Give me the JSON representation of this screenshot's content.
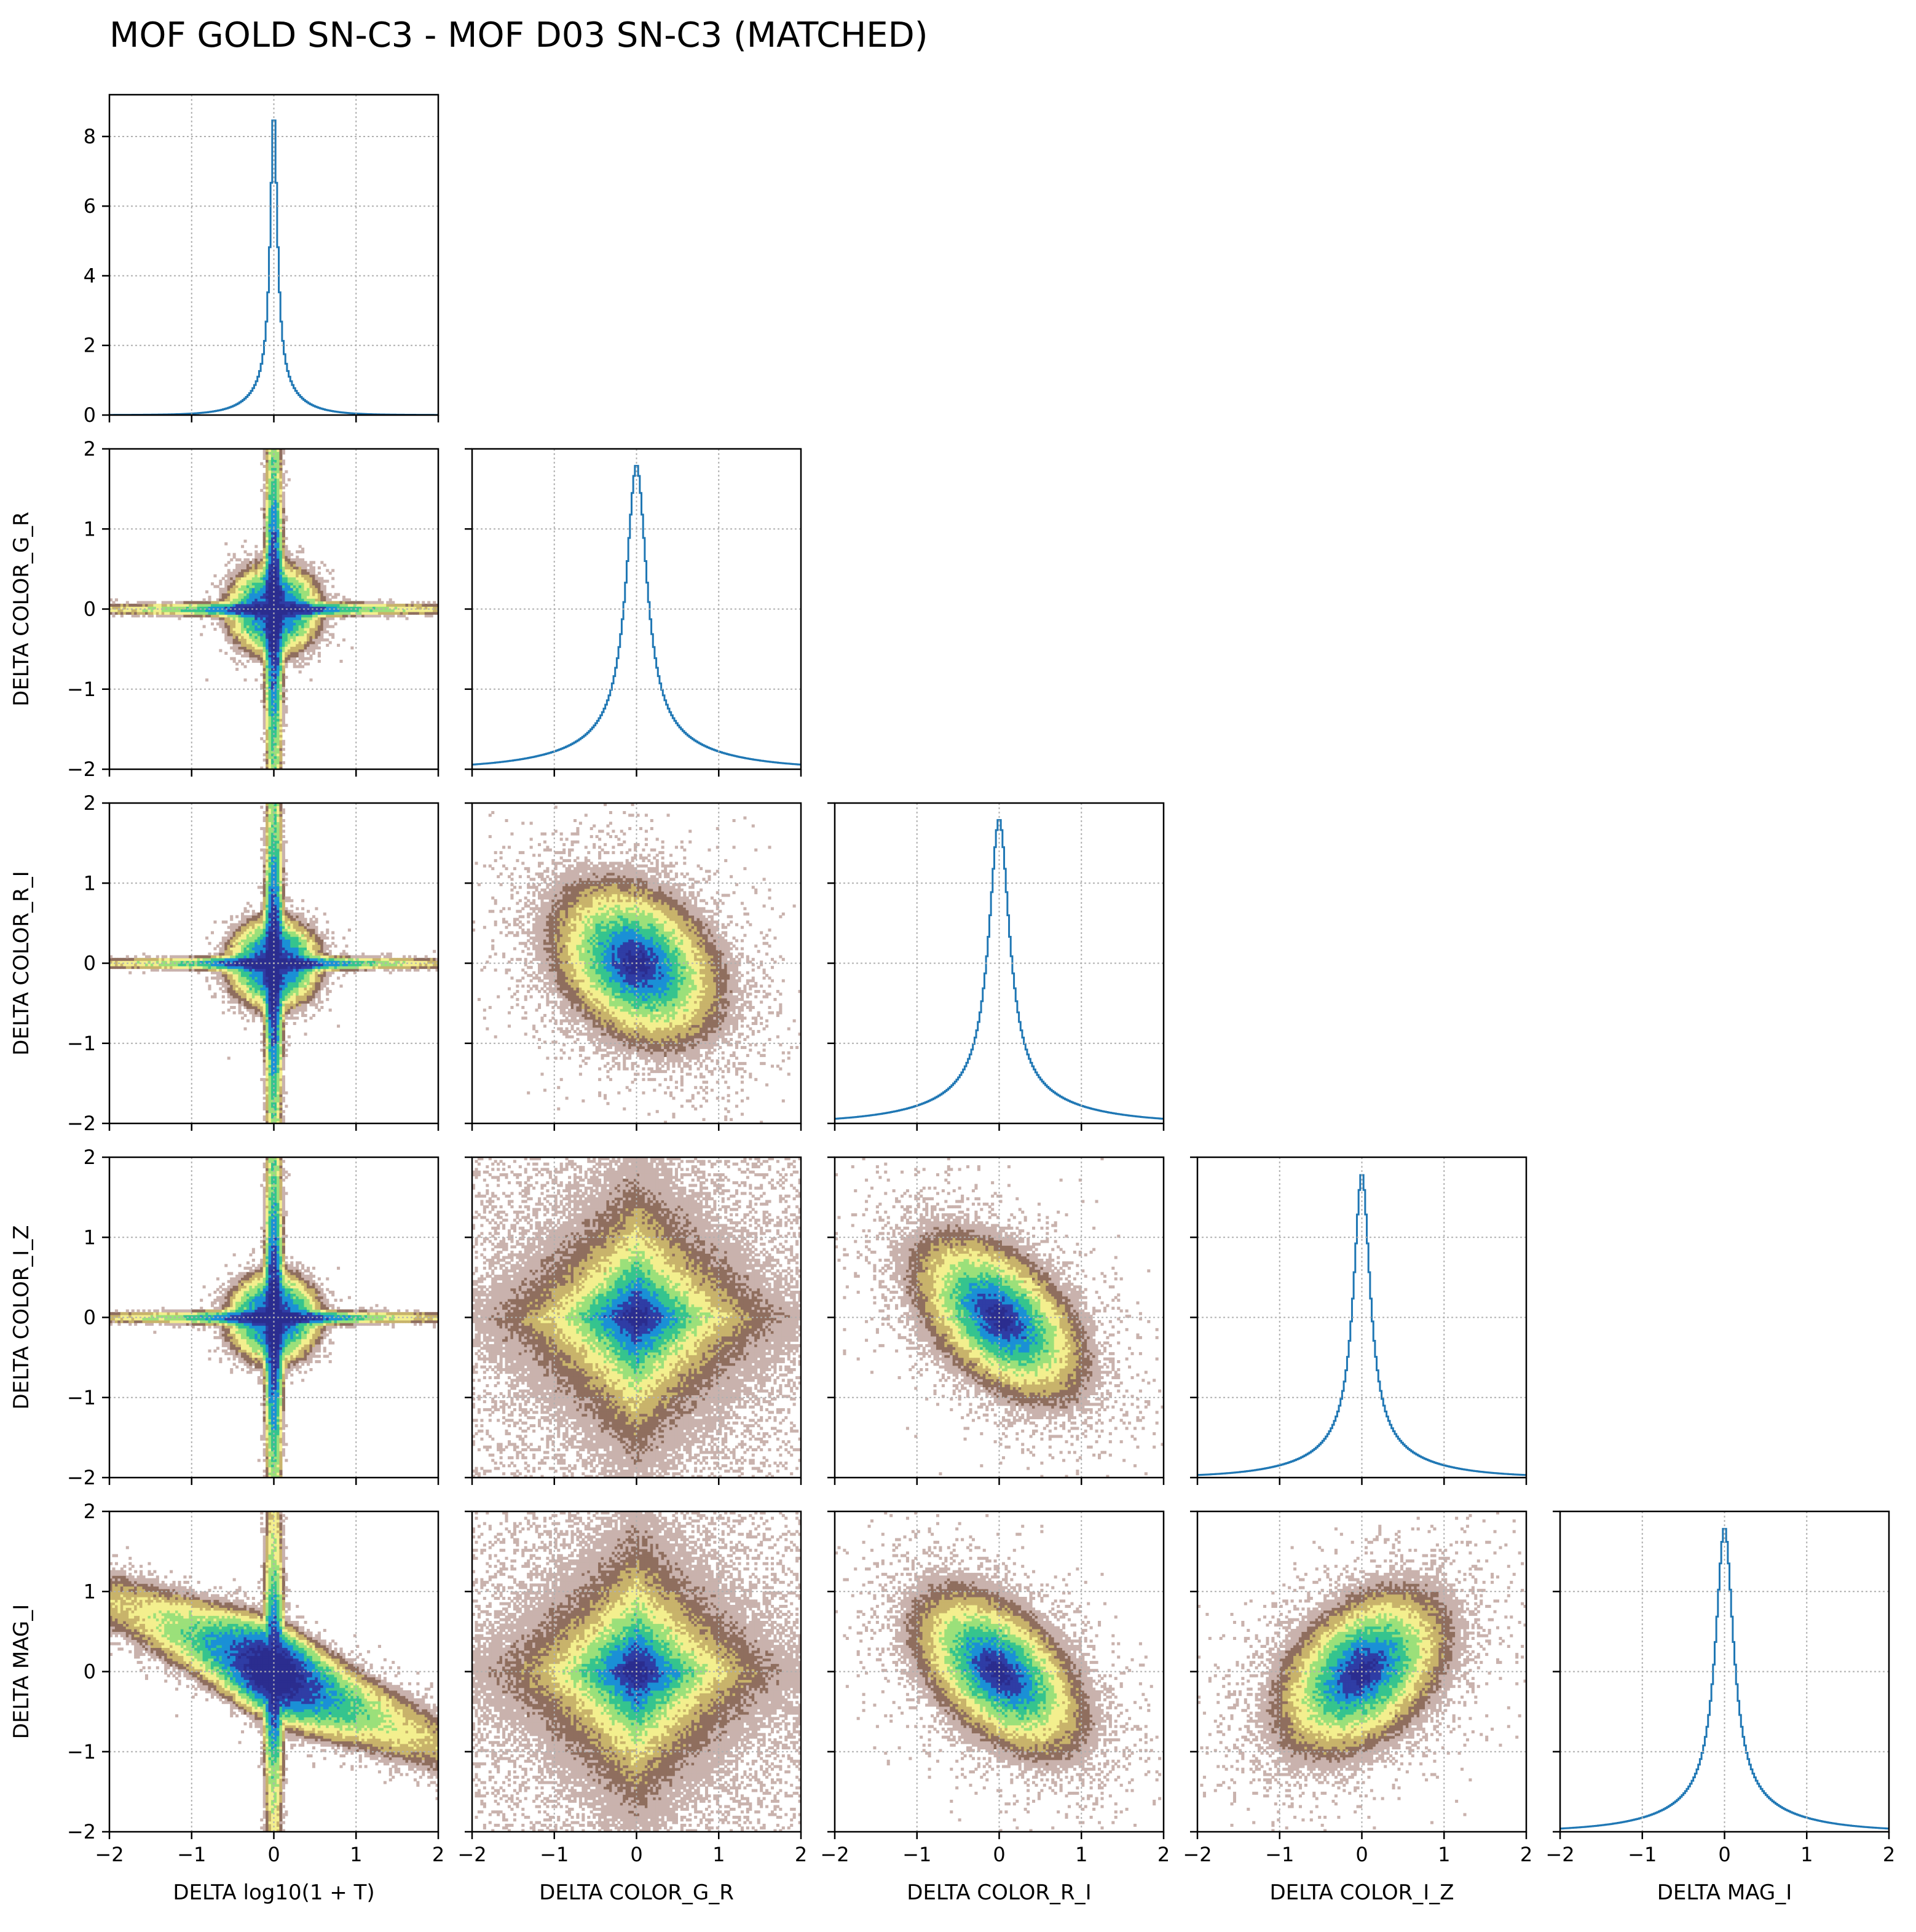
{
  "title": "MOF GOLD SN-C3 - MOF D03 SN-C3 (MATCHED)",
  "colors": {
    "hist_line": "#1f77b4",
    "grid": "#b0b0b0",
    "density_cmap": [
      "#c9b2ad",
      "#8f6e5e",
      "#c8b36b",
      "#f3ef8e",
      "#9be07a",
      "#35c48e",
      "#1a90d6",
      "#2f3da5",
      "#2b2d8f"
    ]
  },
  "chart_data": {
    "type": "corner",
    "title": "MOF GOLD SN-C3 - MOF D03 SN-C3 (MATCHED)",
    "variables": [
      "DELTA log10(1 + T)",
      "DELTA COLOR_G_R",
      "DELTA COLOR_R_I",
      "DELTA COLOR_I_Z",
      "DELTA MAG_I"
    ],
    "axis_range": [
      -2,
      2
    ],
    "ticks": [
      -2,
      -1,
      0,
      1,
      2
    ],
    "tick_labels": [
      "−2",
      "−1",
      "0",
      "1",
      "2"
    ],
    "grid": true,
    "diagonal": {
      "type": "step-histogram",
      "first_panel_y_range": [
        0,
        9.2
      ],
      "first_panel_y_ticks": [
        0,
        2,
        4,
        6,
        8
      ],
      "first_panel_y_tick_labels": [
        "0",
        "2",
        "4",
        "6",
        "8"
      ],
      "peaks": [
        8.8,
        1.8,
        1.8,
        1.8,
        1.8
      ],
      "widths": [
        0.05,
        0.15,
        0.15,
        0.12,
        0.13
      ]
    },
    "off_diagonal": {
      "type": "2d-density-histogram",
      "colormap": "terrain_r",
      "panels": [
        {
          "x": "DELTA log10(1 + T)",
          "y": "DELTA COLOR_G_R",
          "shape": "cross",
          "correlation": 0.0
        },
        {
          "x": "DELTA log10(1 + T)",
          "y": "DELTA COLOR_R_I",
          "shape": "cross",
          "correlation": 0.0
        },
        {
          "x": "DELTA COLOR_G_R",
          "y": "DELTA COLOR_R_I",
          "shape": "blob",
          "correlation": -0.3
        },
        {
          "x": "DELTA log10(1 + T)",
          "y": "DELTA COLOR_I_Z",
          "shape": "cross",
          "correlation": 0.0
        },
        {
          "x": "DELTA COLOR_G_R",
          "y": "DELTA COLOR_I_Z",
          "shape": "diamond",
          "correlation": 0.0
        },
        {
          "x": "DELTA COLOR_R_I",
          "y": "DELTA COLOR_I_Z",
          "shape": "blob",
          "correlation": -0.5
        },
        {
          "x": "DELTA log10(1 + T)",
          "y": "DELTA MAG_I",
          "shape": "diagonal",
          "correlation": -0.6
        },
        {
          "x": "DELTA COLOR_G_R",
          "y": "DELTA MAG_I",
          "shape": "diamond",
          "correlation": 0.0
        },
        {
          "x": "DELTA COLOR_R_I",
          "y": "DELTA MAG_I",
          "shape": "blob",
          "correlation": -0.5
        },
        {
          "x": "DELTA COLOR_I_Z",
          "y": "DELTA MAG_I",
          "shape": "blob",
          "correlation": 0.4
        }
      ]
    }
  }
}
